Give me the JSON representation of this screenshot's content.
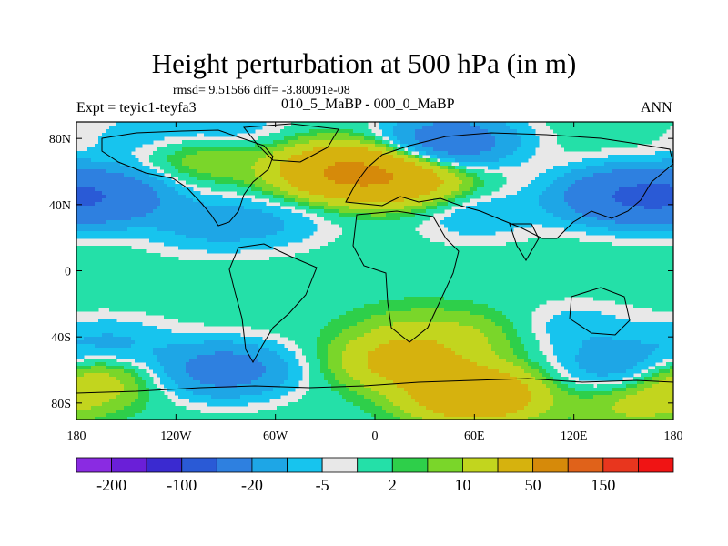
{
  "title": "Height perturbation at 500 hPa (in m)",
  "subtitle": {
    "stats": "rmsd= 9.51566 diff= -3.80091e-08",
    "left": "Expt = teyic1-teyfa3",
    "center": "010_5_MaBP - 000_0_MaBP",
    "right": "ANN"
  },
  "axes": {
    "lat_labels": [
      {
        "label": "80N",
        "lat": 80
      },
      {
        "label": "40N",
        "lat": 40
      },
      {
        "label": "0",
        "lat": 0
      },
      {
        "label": "40S",
        "lat": -40
      },
      {
        "label": "80S",
        "lat": -80
      }
    ],
    "lon_labels": [
      {
        "label": "180",
        "lon": -180
      },
      {
        "label": "120W",
        "lon": -120
      },
      {
        "label": "60W",
        "lon": -60
      },
      {
        "label": "0",
        "lon": 0
      },
      {
        "label": "60E",
        "lon": 60
      },
      {
        "label": "120E",
        "lon": 120
      },
      {
        "label": "180",
        "lon": 180
      }
    ],
    "lat_range": [
      -90,
      90
    ],
    "lon_range": [
      -180,
      180
    ]
  },
  "colorbar": {
    "colors": [
      "#8a2be2",
      "#6a1fd8",
      "#3a2ad0",
      "#2a5ad6",
      "#2e80e0",
      "#1ea6e6",
      "#17c4ee",
      "#e8e8e8",
      "#24e0a8",
      "#2ecf4a",
      "#7ad62a",
      "#c2d51e",
      "#d6b20e",
      "#d68a0a",
      "#e0621a",
      "#e8361e",
      "#f01414"
    ],
    "labels": [
      {
        "text": "-200",
        "index": 1
      },
      {
        "text": "-100",
        "index": 3
      },
      {
        "text": "-20",
        "index": 5
      },
      {
        "text": "-5",
        "index": 7
      },
      {
        "text": "2",
        "index": 9
      },
      {
        "text": "10",
        "index": 11
      },
      {
        "text": "50",
        "index": 13
      },
      {
        "text": "150",
        "index": 15
      }
    ]
  },
  "field_features": [
    {
      "lon": -165,
      "lat": 45,
      "value": -40
    },
    {
      "lon": -105,
      "lat": 70,
      "value": 12
    },
    {
      "lon": -100,
      "lat": 28,
      "value": -12
    },
    {
      "lon": -60,
      "lat": 30,
      "value": -8
    },
    {
      "lon": -20,
      "lat": 60,
      "value": 50
    },
    {
      "lon": 20,
      "lat": 55,
      "value": 30
    },
    {
      "lon": 45,
      "lat": 78,
      "value": -35
    },
    {
      "lon": 60,
      "lat": 35,
      "value": -10
    },
    {
      "lon": 150,
      "lat": 45,
      "value": -45
    },
    {
      "lon": -90,
      "lat": -60,
      "value": -30
    },
    {
      "lon": -160,
      "lat": -45,
      "value": -12
    },
    {
      "lon": -175,
      "lat": -65,
      "value": 20
    },
    {
      "lon": 15,
      "lat": -55,
      "value": 25
    },
    {
      "lon": 60,
      "lat": -75,
      "value": 45
    },
    {
      "lon": 150,
      "lat": -60,
      "value": -20
    },
    {
      "lon": 155,
      "lat": -80,
      "value": 12
    },
    {
      "lon": 120,
      "lat": -35,
      "value": -8
    },
    {
      "lon": 20,
      "lat": -35,
      "value": 6
    },
    {
      "lon": 60,
      "lat": -40,
      "value": 8
    },
    {
      "lon": -90,
      "lat": 85,
      "value": -10
    },
    {
      "lon": -140,
      "lat": 80,
      "value": -8
    }
  ]
}
